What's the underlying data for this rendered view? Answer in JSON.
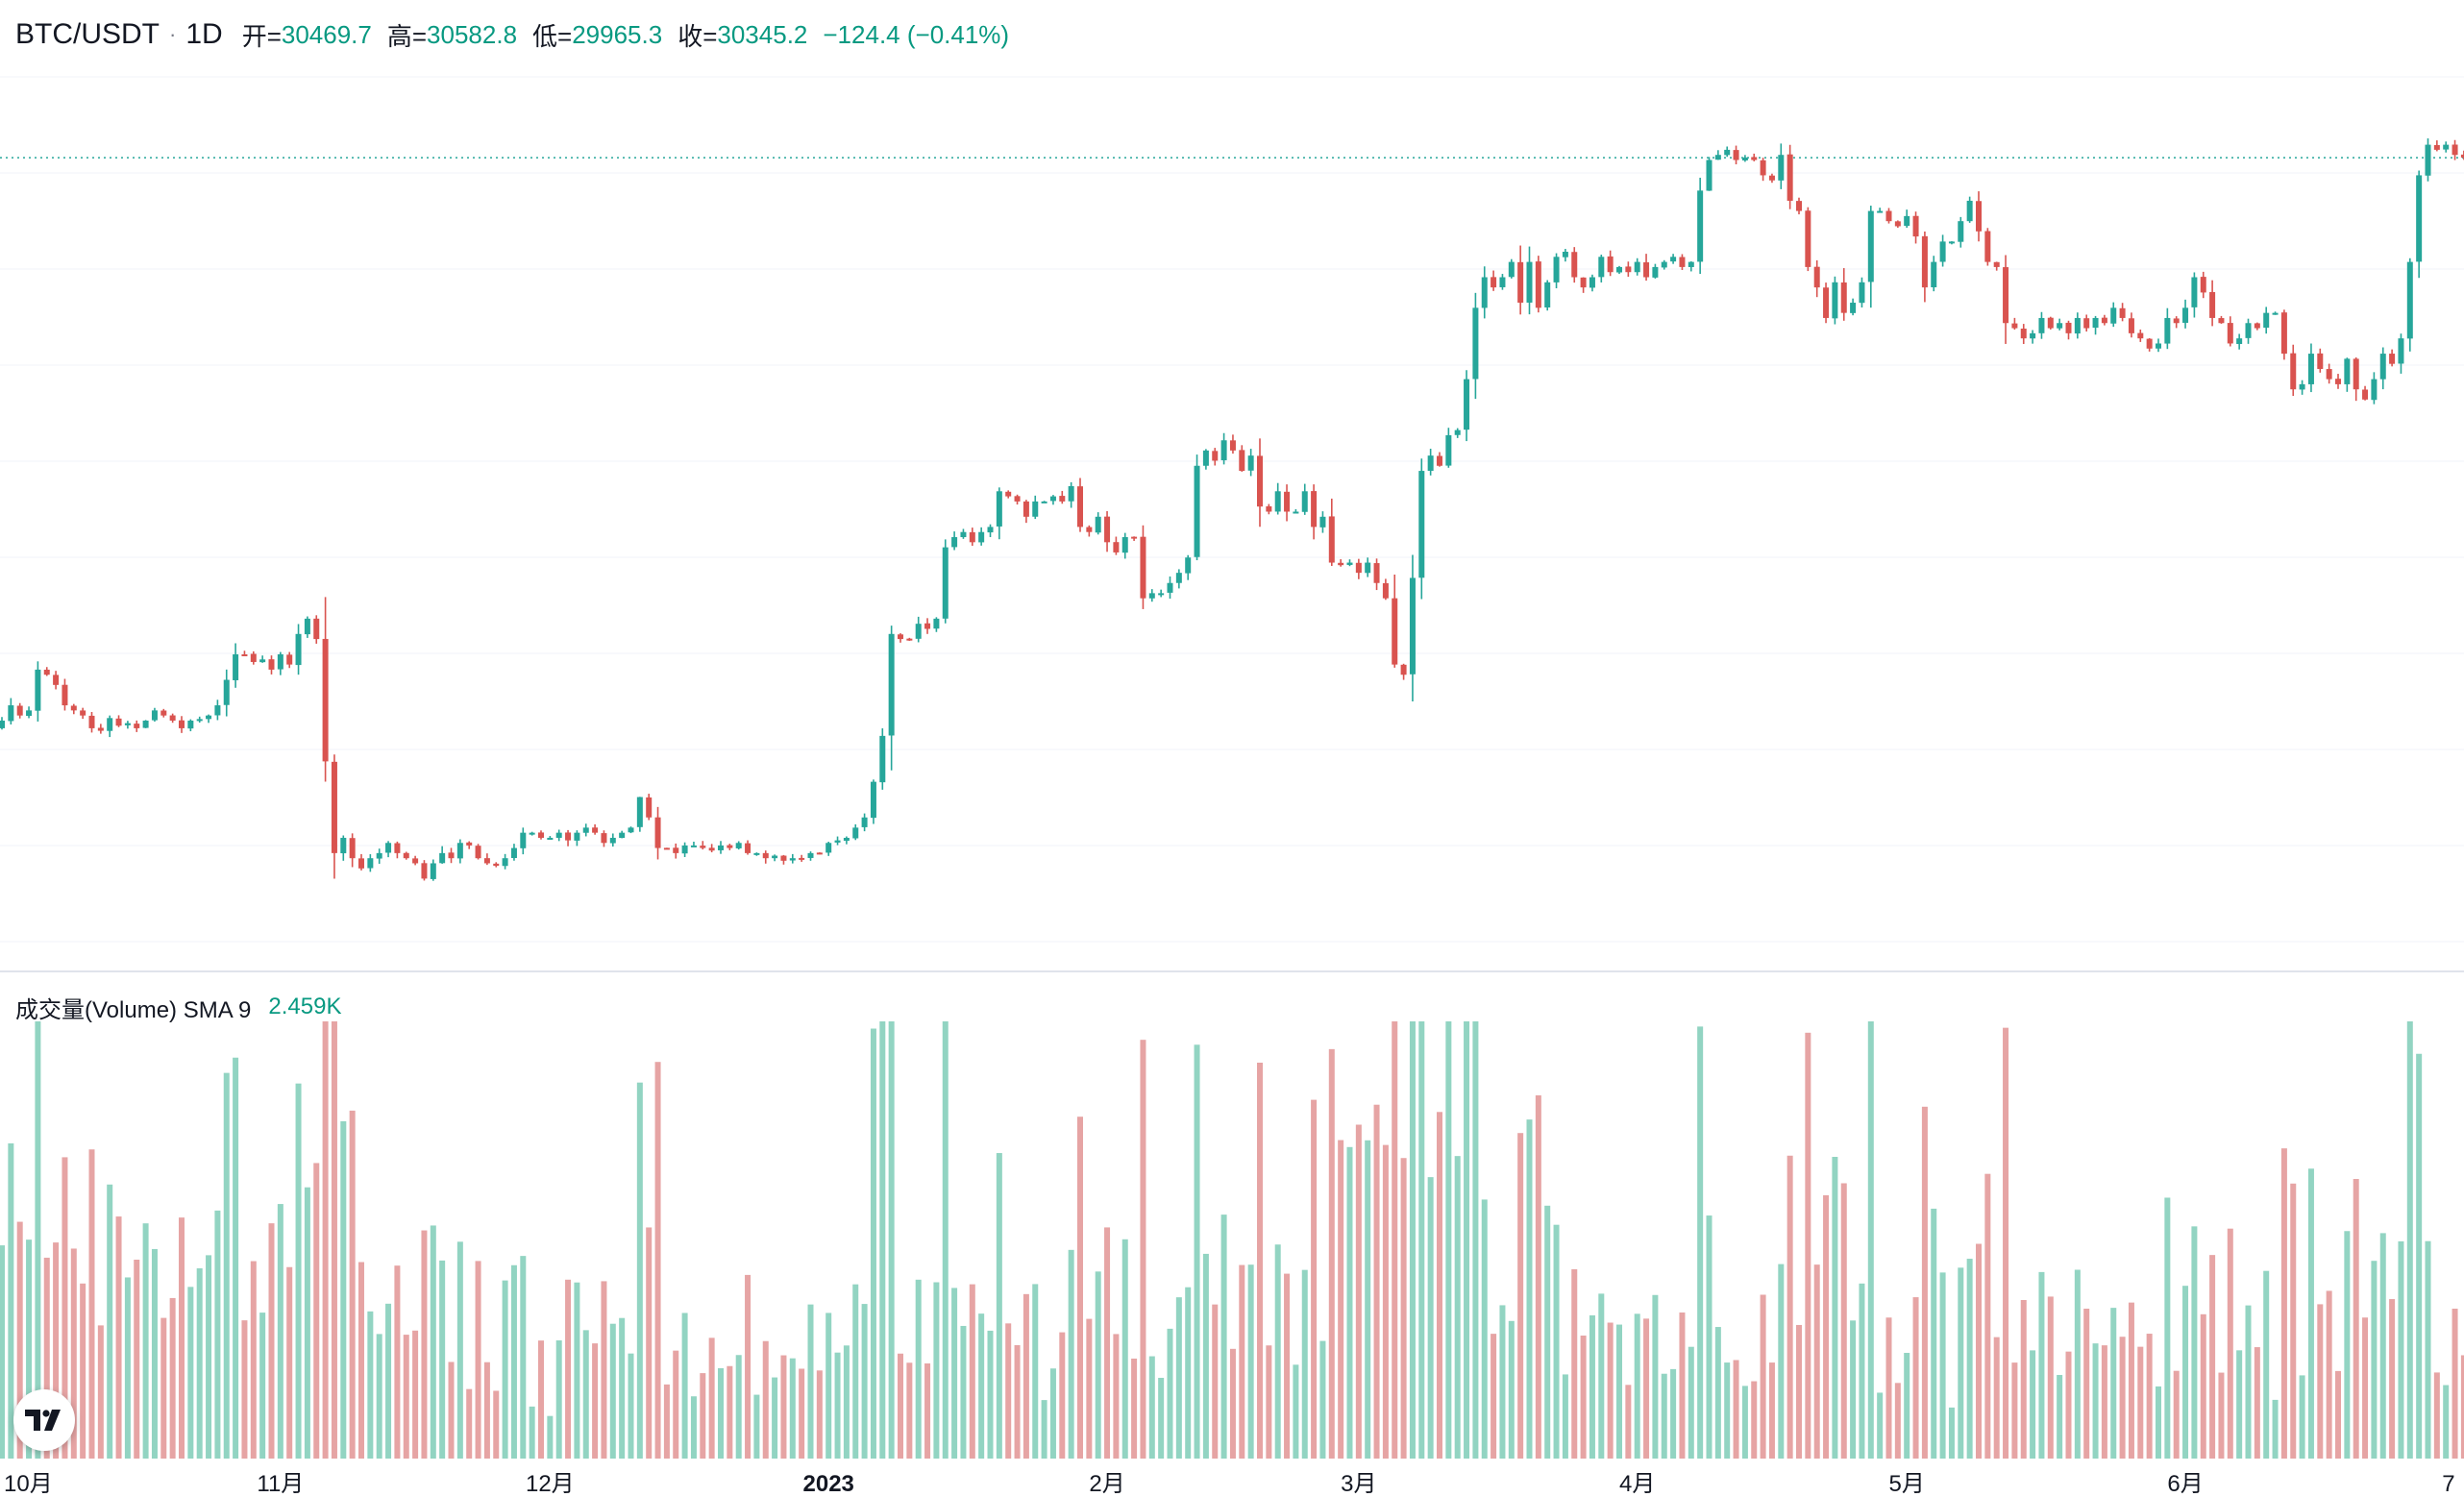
{
  "legend": {
    "symbol": "BTC/USDT",
    "separator": "·",
    "timeframe": "1D",
    "open_label": "开=",
    "open": "30469.7",
    "high_label": "高=",
    "high": "30582.8",
    "low_label": "低=",
    "low": "29965.3",
    "close_label": "收=",
    "close": "30345.2",
    "change": "−124.4 (−0.41%)"
  },
  "volume_legend": {
    "name": "成交量(Volume) SMA 9",
    "value": "2.459K"
  },
  "colors": {
    "up": "#26a69a",
    "down": "#d9534f",
    "volume_up": "#92d4c2",
    "volume_down": "#e6a4a4",
    "last_price_line": "#26a69a",
    "grid": "#f0f3fa"
  },
  "icons": {
    "logo": "tradingview-logo-icon"
  },
  "chart_data": {
    "type": "candlestick",
    "symbol": "BTC/USDT",
    "interval": "1D",
    "last_close": 30345.2,
    "x_ticks": [
      "10月",
      "11月",
      "12月",
      "2023",
      "2月",
      "3月",
      "4月",
      "5月",
      "6月",
      "7"
    ],
    "x_tick_days": [
      0,
      31,
      61,
      92,
      123,
      151,
      182,
      212,
      243,
      273
    ],
    "series": [
      {
        "name": "BTC/USDT",
        "closes": [
          19300,
          19600,
          19400,
          19500,
          20300,
          20200,
          20000,
          19600,
          19500,
          19400,
          19150,
          19100,
          19350,
          19200,
          19250,
          19150,
          19300,
          19500,
          19400,
          19300,
          19150,
          19300,
          19330,
          19400,
          19600,
          20100,
          20600,
          20600,
          20450,
          20500,
          20300,
          20600,
          20400,
          21000,
          21300,
          20900,
          18500,
          16700,
          17000,
          16600,
          16400,
          16600,
          16700,
          16900,
          16700,
          16600,
          16500,
          16200,
          16500,
          16700,
          16600,
          16900,
          16850,
          16600,
          16500,
          16450,
          16600,
          16800,
          17100,
          17100,
          17000,
          17000,
          17100,
          16950,
          17100,
          17200,
          17100,
          16900,
          17000,
          17100,
          17200,
          17800,
          17400,
          16800,
          16800,
          16700,
          16850,
          16850,
          16800,
          16750,
          16850,
          16800,
          16900,
          16700,
          16700,
          16600,
          16650,
          16550,
          16600,
          16600,
          16700,
          16700,
          16900,
          16950,
          17000,
          17200,
          17400,
          18100,
          19000,
          21000,
          20900,
          20900,
          21200,
          21100,
          21300,
          22700,
          22900,
          23000,
          22800,
          23000,
          23100,
          23800,
          23700,
          23600,
          23300,
          23600,
          23600,
          23700,
          23600,
          23900,
          23100,
          23000,
          23300,
          22800,
          22600,
          22900,
          22900,
          21700,
          21800,
          21800,
          22000,
          22200,
          22500,
          24300,
          24600,
          24400,
          24800,
          24600,
          24200,
          24500,
          23500,
          23400,
          23800,
          23400,
          23400,
          23800,
          23100,
          23300,
          22400,
          22350,
          22400,
          22200,
          22400,
          22000,
          21700,
          20400,
          20200,
          22100,
          24200,
          24500,
          24300,
          24900,
          25000,
          26000,
          27400,
          28000,
          27800,
          28000,
          28300,
          27500,
          28300,
          27400,
          27900,
          28400,
          28500,
          28000,
          27800,
          28000,
          28400,
          28100,
          28200,
          28100,
          28300,
          28000,
          28200,
          28300,
          28400,
          28200,
          28300,
          29700,
          30300,
          30400,
          30500,
          30300,
          30350,
          30300,
          30000,
          29900,
          30400,
          29500,
          29300,
          28200,
          27800,
          27200,
          27900,
          27300,
          27500,
          27900,
          29300,
          29300,
          29100,
          29000,
          29200,
          28800,
          27800,
          28300,
          28700,
          28700,
          29100,
          29500,
          28900,
          28300,
          28200,
          27100,
          27000,
          26800,
          26900,
          27200,
          27000,
          27100,
          26900,
          27200,
          27000,
          27200,
          27100,
          27400,
          27200,
          26900,
          26800,
          26600,
          26700,
          27200,
          27100,
          27400,
          28000,
          27700,
          27200,
          27100,
          26700,
          26800,
          27100,
          27000,
          27300,
          27300,
          26500,
          25800,
          25900,
          26500,
          26200,
          26000,
          25900,
          26400,
          25800,
          25600,
          26000,
          26500,
          26300,
          26800,
          28300,
          30000,
          30600,
          30500,
          30600,
          30400,
          30345.2
        ]
      }
    ],
    "volume_series": {
      "name": "成交量(Volume)",
      "sma_period": 9,
      "last_sma": 2459
    }
  }
}
